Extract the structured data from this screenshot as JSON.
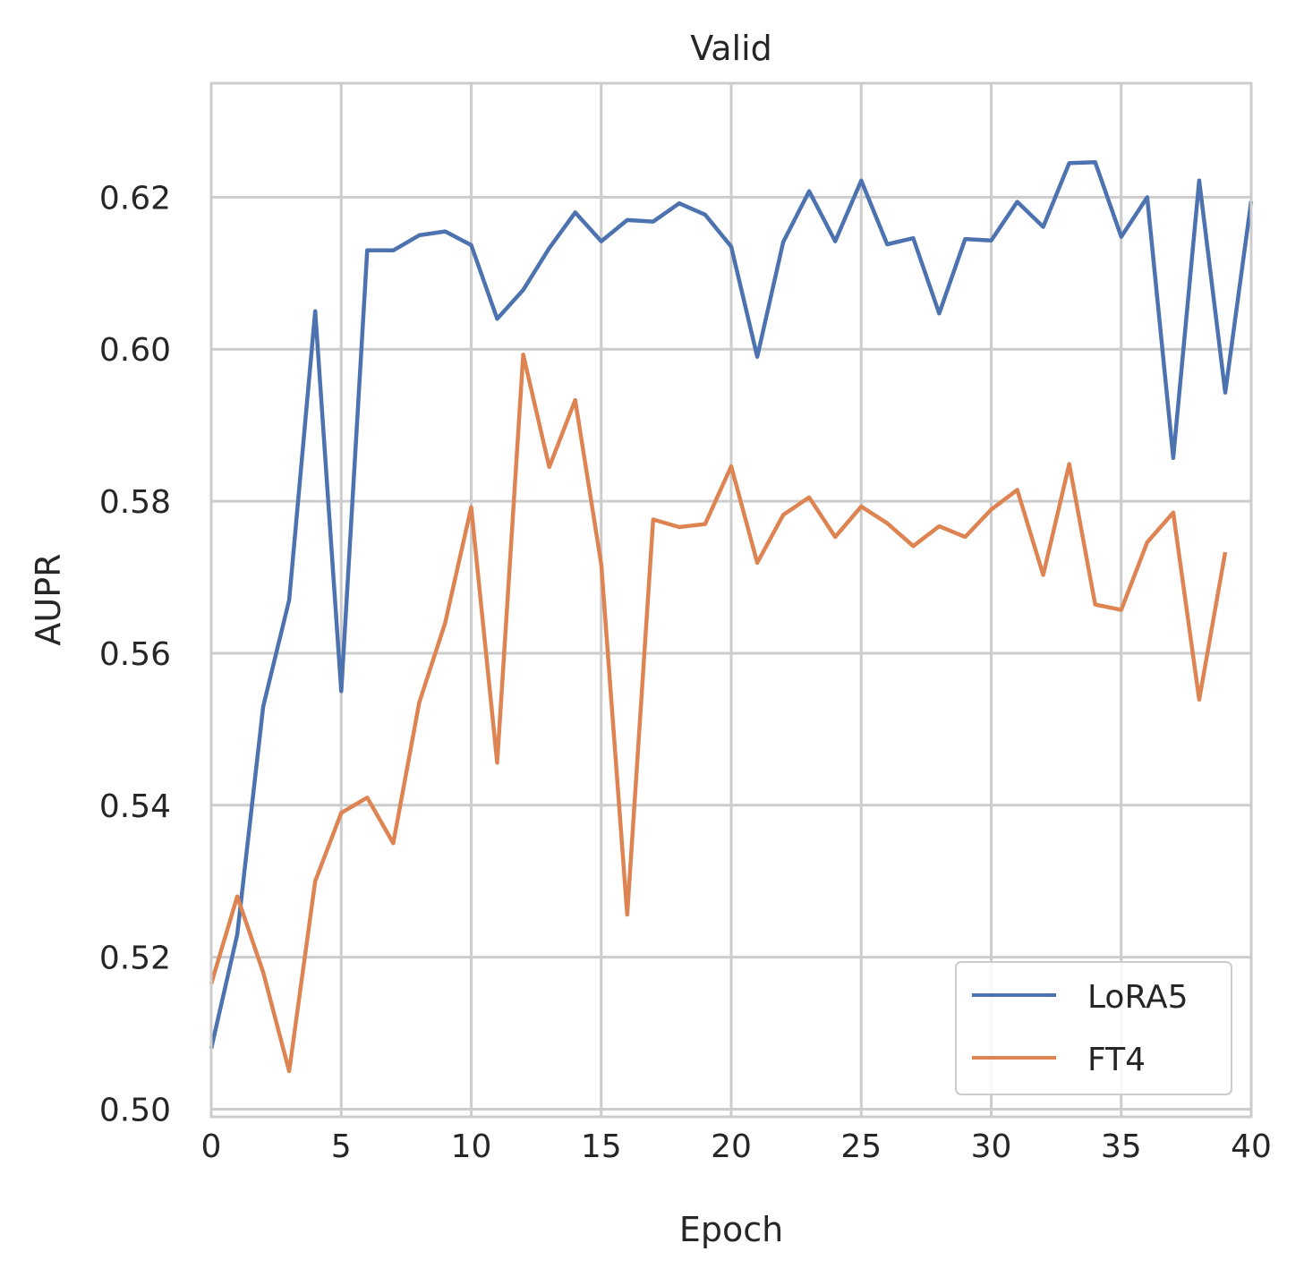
{
  "chart_data": {
    "type": "line",
    "title": "Valid",
    "xlabel": "Epoch",
    "ylabel": "AUPR",
    "xlim": [
      0,
      40
    ],
    "ylim": [
      0.499,
      0.635
    ],
    "xticks": [
      0,
      5,
      10,
      15,
      20,
      25,
      30,
      35,
      40
    ],
    "yticks": [
      0.5,
      0.52,
      0.54,
      0.56,
      0.58,
      0.6,
      0.62
    ],
    "ytick_labels": [
      "0.50",
      "0.52",
      "0.54",
      "0.56",
      "0.58",
      "0.60",
      "0.62"
    ],
    "grid": true,
    "legend_position": "bottom-right",
    "series": [
      {
        "name": "LoRA5",
        "color": "#4c72b0",
        "x": [
          0,
          1,
          2,
          3,
          4,
          5,
          6,
          7,
          8,
          9,
          10,
          11,
          12,
          13,
          14,
          15,
          16,
          17,
          18,
          19,
          20,
          21,
          22,
          23,
          24,
          25,
          26,
          27,
          28,
          29,
          30,
          31,
          32,
          33,
          34,
          35,
          36,
          37,
          38,
          39,
          40
        ],
        "values": [
          0.508,
          0.523,
          0.553,
          0.567,
          0.605,
          0.555,
          0.613,
          0.613,
          0.615,
          0.6155,
          0.6137,
          0.604,
          0.6078,
          0.6133,
          0.618,
          0.6142,
          0.617,
          0.6168,
          0.6192,
          0.6177,
          0.6135,
          0.599,
          0.6141,
          0.6208,
          0.6142,
          0.6222,
          0.6138,
          0.6146,
          0.6047,
          0.6145,
          0.6143,
          0.6194,
          0.6161,
          0.6245,
          0.6246,
          0.6148,
          0.62,
          0.5857,
          0.6222,
          0.5943,
          0.6195
        ]
      },
      {
        "name": "FT4",
        "color": "#dd8452",
        "x": [
          0,
          1,
          2,
          3,
          4,
          5,
          6,
          7,
          8,
          9,
          10,
          11,
          12,
          13,
          14,
          15,
          16,
          17,
          18,
          19,
          20,
          21,
          22,
          23,
          24,
          25,
          26,
          27,
          28,
          29,
          30,
          31,
          32,
          33,
          34,
          35,
          36,
          37,
          38,
          39
        ],
        "values": [
          0.5165,
          0.528,
          0.518,
          0.505,
          0.53,
          0.539,
          0.541,
          0.535,
          0.5535,
          0.564,
          0.5792,
          0.5456,
          0.5993,
          0.5845,
          0.5933,
          0.5717,
          0.5256,
          0.5776,
          0.5766,
          0.577,
          0.5846,
          0.5719,
          0.5782,
          0.5805,
          0.5753,
          0.5793,
          0.5771,
          0.5741,
          0.5767,
          0.5753,
          0.5789,
          0.5815,
          0.5703,
          0.5849,
          0.5664,
          0.5657,
          0.5746,
          0.5785,
          0.5539,
          0.5733
        ]
      }
    ]
  }
}
